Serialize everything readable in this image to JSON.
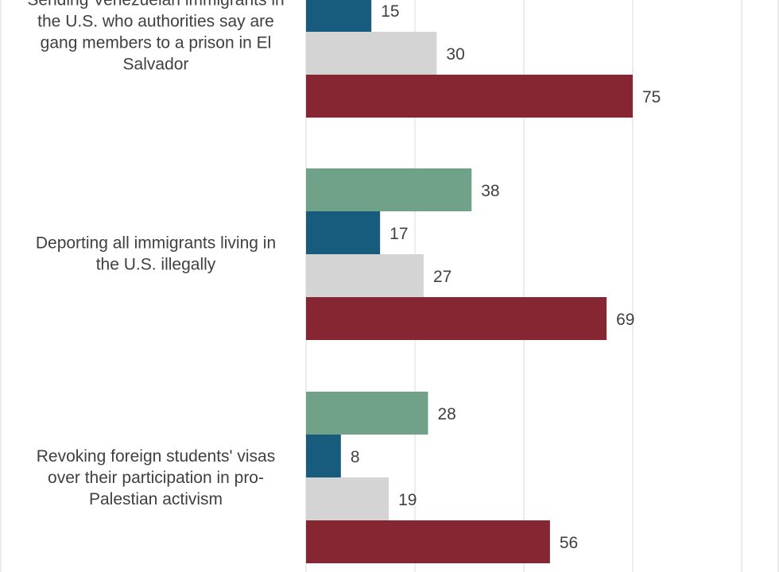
{
  "chart_data": {
    "type": "bar",
    "orientation": "horizontal",
    "title": "",
    "xlabel": "",
    "ylabel": "",
    "xlim": [
      0,
      100
    ],
    "grid": true,
    "categories": [
      [
        "Sending Venezuelan immigrants in",
        "the U.S. who authorities say are",
        "gang members to a prison in El",
        "Salvador"
      ],
      [
        "Deporting all immigrants living in",
        "the U.S. illegally"
      ],
      [
        "Revoking foreign students' visas",
        "over their participation in pro-",
        "Palestian activism"
      ]
    ],
    "series": [
      {
        "color": "#6fa288",
        "values": [
          null,
          38,
          28
        ]
      },
      {
        "color": "#175c7d",
        "values": [
          15,
          17,
          8
        ]
      },
      {
        "color": "#d4d4d4",
        "values": [
          30,
          27,
          19
        ]
      },
      {
        "color": "#862633",
        "values": [
          75,
          69,
          56
        ]
      }
    ]
  }
}
